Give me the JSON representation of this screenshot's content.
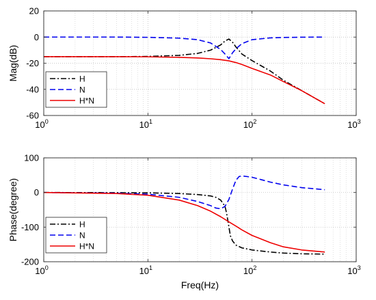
{
  "chart_data": [
    {
      "type": "line",
      "xscale": "log",
      "xlim": [
        1,
        1000
      ],
      "ylim": [
        -60,
        20
      ],
      "xlabel": "",
      "ylabel": "Mag(dB)",
      "grid": true,
      "legend_position": "bottom-left",
      "xticks": [
        {
          "value": 1,
          "base": "10",
          "exp": "0"
        },
        {
          "value": 10,
          "base": "10",
          "exp": "1"
        },
        {
          "value": 100,
          "base": "10",
          "exp": "2"
        },
        {
          "value": 1000,
          "base": "10",
          "exp": "3"
        }
      ],
      "yticks": [
        {
          "value": 20,
          "label": "20"
        },
        {
          "value": 0,
          "label": "0"
        },
        {
          "value": -20,
          "label": "-20"
        },
        {
          "value": -40,
          "label": "-40"
        },
        {
          "value": -60,
          "label": "-60"
        }
      ],
      "series": [
        {
          "name": "H",
          "color": "#000000",
          "dash": "dashdot",
          "x": [
            1,
            5,
            10,
            20,
            30,
            40,
            50,
            55,
            60,
            65,
            70,
            80,
            100,
            150,
            200,
            300,
            500
          ],
          "y": [
            -15,
            -15,
            -14.8,
            -14,
            -12.5,
            -10,
            -6,
            -3,
            -1.5,
            -4,
            -7.5,
            -13,
            -18,
            -26,
            -33,
            -41,
            -51
          ]
        },
        {
          "name": "N",
          "color": "#0000ee",
          "dash": "dashed",
          "x": [
            1,
            5,
            10,
            20,
            30,
            40,
            50,
            55,
            60,
            65,
            70,
            80,
            100,
            150,
            200,
            300,
            500
          ],
          "y": [
            0,
            0,
            -0.2,
            -0.8,
            -2,
            -4.5,
            -9.5,
            -13,
            -16.5,
            -12,
            -9,
            -5,
            -2,
            -0.6,
            -0.3,
            -0.1,
            0
          ]
        },
        {
          "name": "H*N",
          "color": "#ee0000",
          "dash": "solid",
          "x": [
            1,
            5,
            10,
            20,
            30,
            40,
            50,
            60,
            70,
            80,
            100,
            150,
            200,
            300,
            500
          ],
          "y": [
            -15,
            -15,
            -15.1,
            -15.5,
            -16,
            -16.6,
            -17.3,
            -18.2,
            -19.5,
            -21,
            -24,
            -29,
            -34,
            -41,
            -51
          ]
        }
      ]
    },
    {
      "type": "line",
      "xscale": "log",
      "xlim": [
        1,
        1000
      ],
      "ylim": [
        -200,
        100
      ],
      "xlabel": "Freq(Hz)",
      "ylabel": "Phase(degree)",
      "grid": true,
      "legend_position": "bottom-left",
      "xticks": [
        {
          "value": 1,
          "base": "10",
          "exp": "0"
        },
        {
          "value": 10,
          "base": "10",
          "exp": "1"
        },
        {
          "value": 100,
          "base": "10",
          "exp": "2"
        },
        {
          "value": 1000,
          "base": "10",
          "exp": "3"
        }
      ],
      "yticks": [
        {
          "value": 100,
          "label": "100"
        },
        {
          "value": 0,
          "label": "0"
        },
        {
          "value": -100,
          "label": "-100"
        },
        {
          "value": -200,
          "label": "-200"
        }
      ],
      "series": [
        {
          "name": "H",
          "color": "#000000",
          "dash": "dashdot",
          "x": [
            1,
            5,
            10,
            20,
            30,
            40,
            45,
            50,
            55,
            57,
            60,
            62,
            65,
            70,
            80,
            100,
            150,
            200,
            300,
            500
          ],
          "y": [
            0,
            -0.5,
            -1,
            -3,
            -6,
            -10,
            -14,
            -22,
            -40,
            -60,
            -100,
            -125,
            -140,
            -152,
            -160,
            -166,
            -172,
            -175,
            -177,
            -178
          ]
        },
        {
          "name": "N",
          "color": "#0000ee",
          "dash": "dashed",
          "x": [
            1,
            5,
            10,
            20,
            30,
            40,
            45,
            50,
            55,
            60,
            65,
            70,
            75,
            80,
            100,
            150,
            200,
            300,
            500
          ],
          "y": [
            0,
            -2,
            -5,
            -14,
            -26,
            -38,
            -45,
            -47,
            -40,
            -20,
            10,
            35,
            46,
            48,
            44,
            30,
            22,
            14,
            8
          ]
        },
        {
          "name": "H*N",
          "color": "#ee0000",
          "dash": "solid",
          "x": [
            1,
            5,
            10,
            20,
            30,
            40,
            50,
            60,
            70,
            80,
            100,
            150,
            200,
            300,
            500
          ],
          "y": [
            0,
            -3,
            -8,
            -22,
            -38,
            -54,
            -70,
            -85,
            -97,
            -108,
            -124,
            -145,
            -157,
            -166,
            -172
          ]
        }
      ]
    }
  ]
}
